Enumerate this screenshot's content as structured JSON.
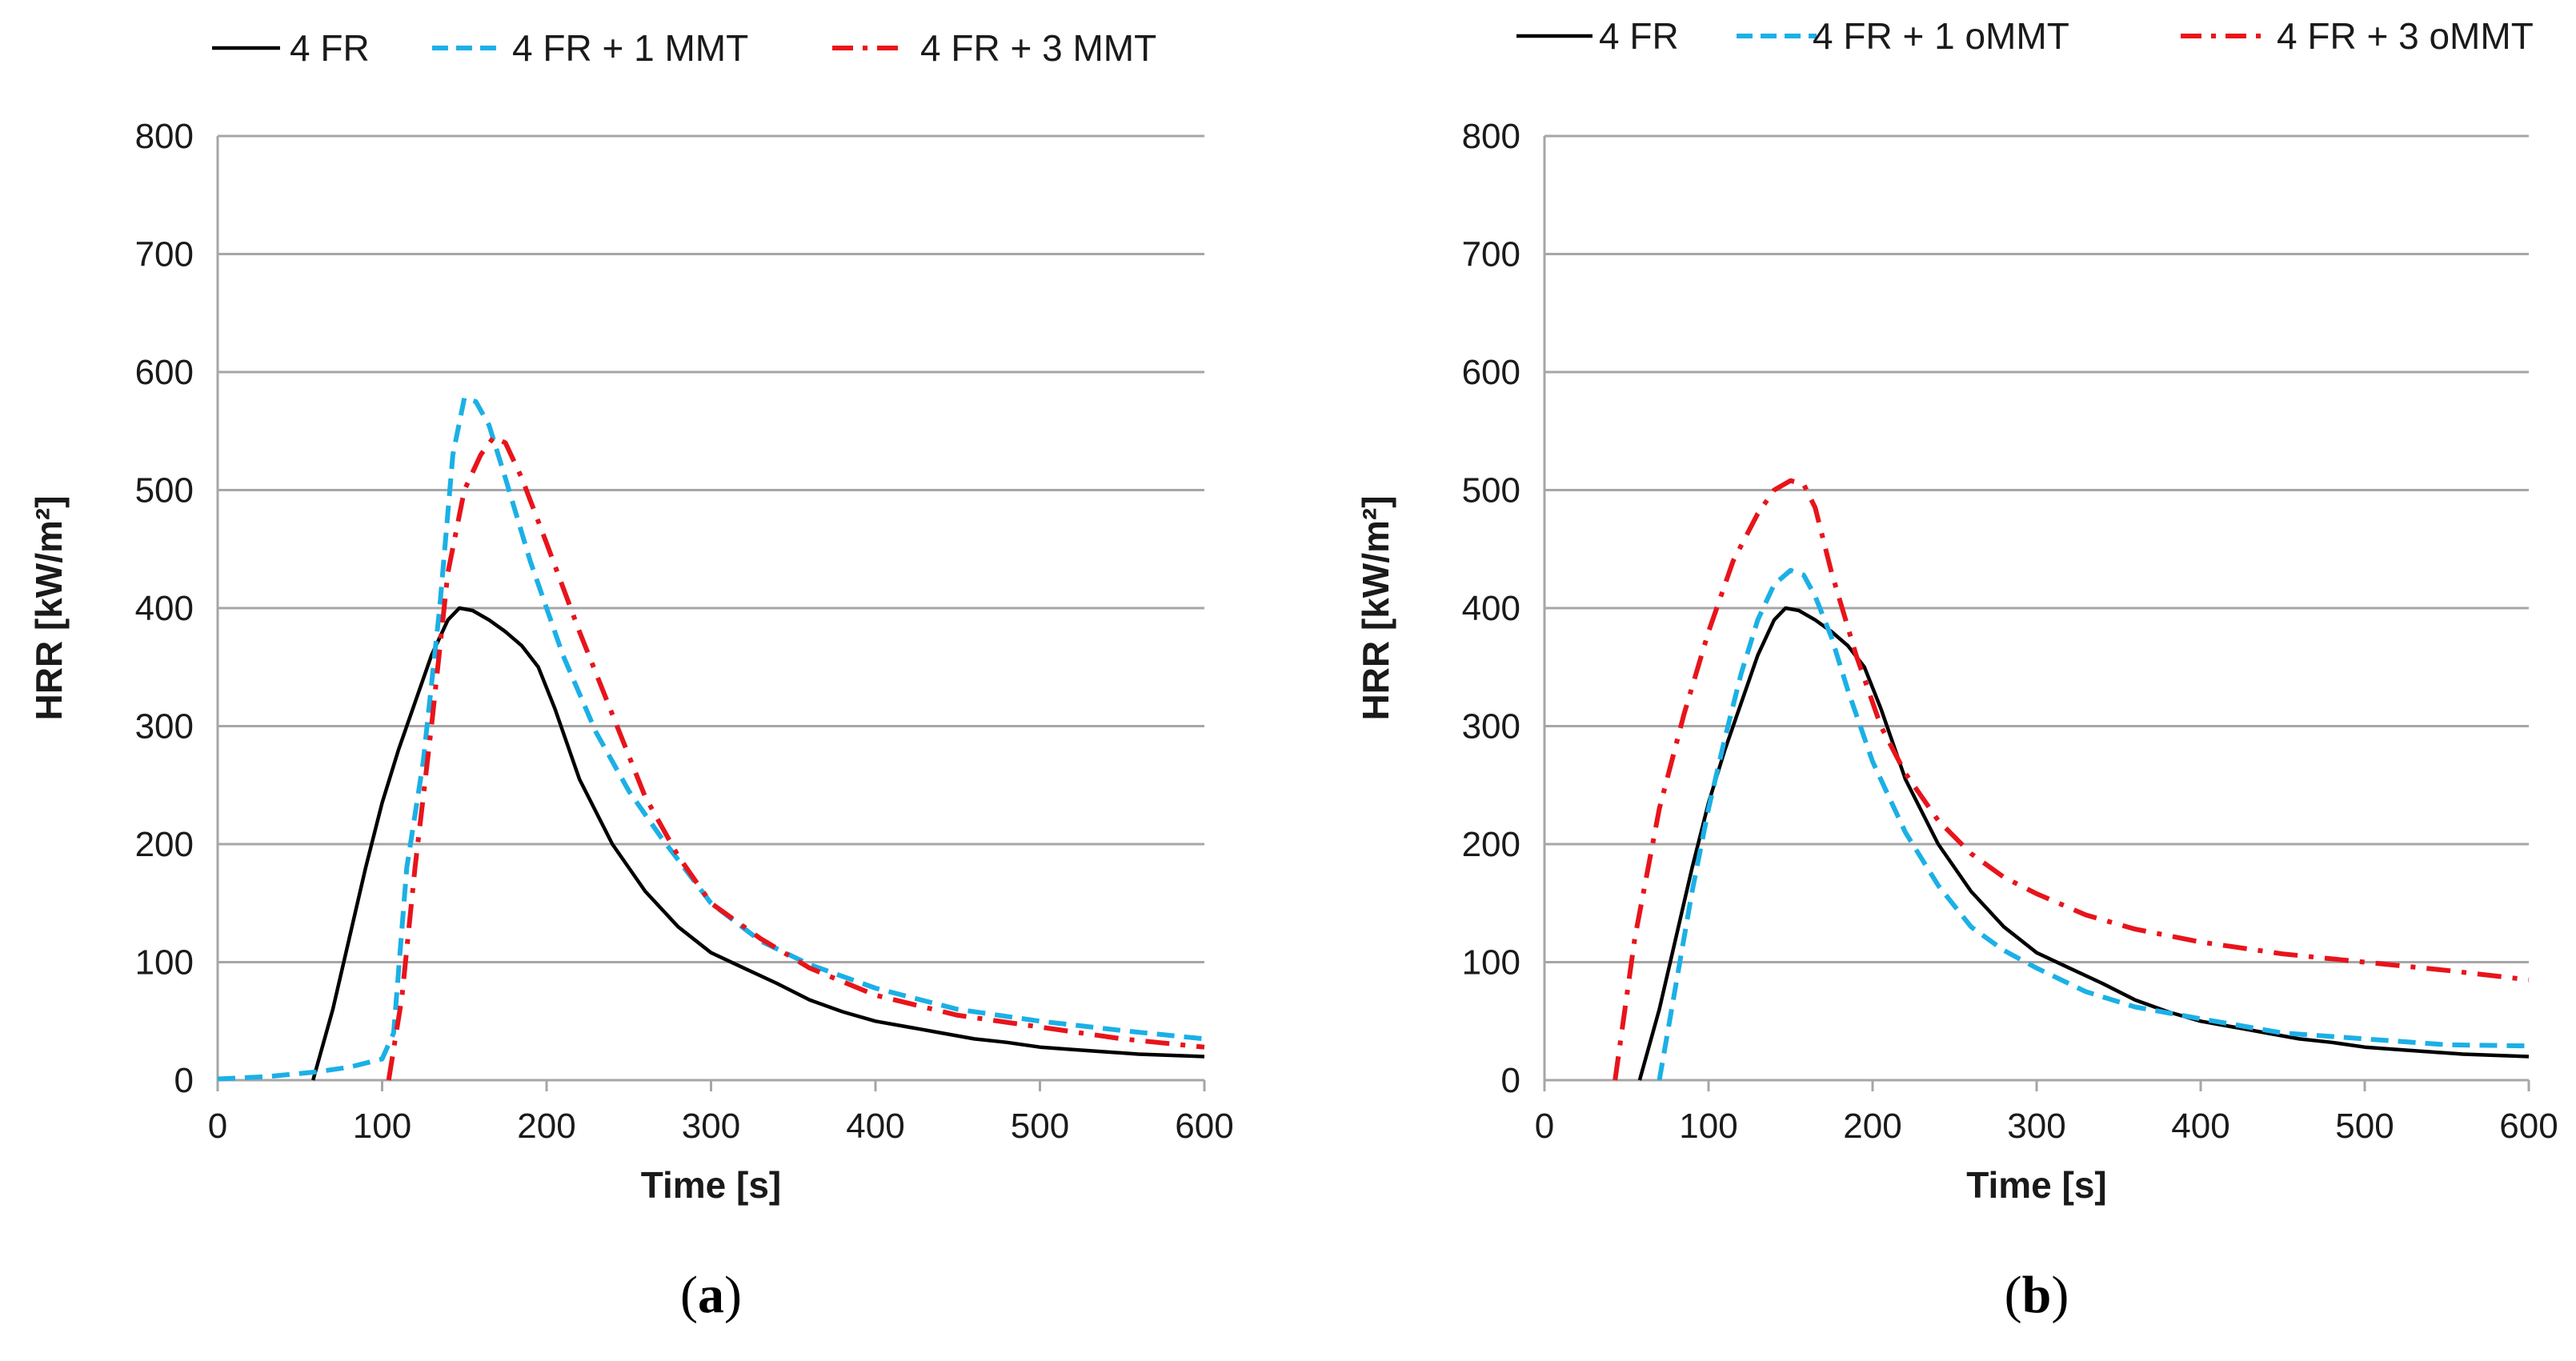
{
  "colors": {
    "4FR": "#000000",
    "plus1": "#1BB0E6",
    "plus3": "#E8141B",
    "grid": "#a6a6a6"
  },
  "chart_data": [
    {
      "type": "line",
      "panel_label": "(a)",
      "panel_letter": "a",
      "xlabel": "Time [s]",
      "ylabel": "HRR [kW/m²]",
      "xlim": [
        0,
        600
      ],
      "ylim": [
        0,
        800
      ],
      "xticks": [
        0,
        100,
        200,
        300,
        400,
        500,
        600
      ],
      "yticks": [
        0,
        100,
        200,
        300,
        400,
        500,
        600,
        700,
        800
      ],
      "grid": "horizontal",
      "legend_position": "top",
      "series": [
        {
          "name": "4 FR",
          "style": "solid",
          "color_key": "4FR",
          "x": [
            58,
            70,
            80,
            90,
            100,
            110,
            120,
            130,
            140,
            147,
            155,
            165,
            175,
            185,
            195,
            205,
            220,
            240,
            260,
            280,
            300,
            320,
            340,
            360,
            380,
            400,
            420,
            440,
            460,
            480,
            500,
            520,
            540,
            560,
            580,
            600
          ],
          "y": [
            0,
            60,
            120,
            180,
            235,
            280,
            320,
            360,
            390,
            400,
            398,
            390,
            380,
            368,
            350,
            315,
            255,
            200,
            160,
            130,
            108,
            95,
            82,
            68,
            58,
            50,
            45,
            40,
            35,
            32,
            28,
            26,
            24,
            22,
            21,
            20
          ]
        },
        {
          "name": "4 FR + 1 MMT",
          "style": "dashed",
          "color_key": "plus1",
          "x": [
            0,
            30,
            60,
            80,
            100,
            107,
            115,
            125,
            135,
            143,
            150,
            157,
            165,
            175,
            190,
            210,
            230,
            250,
            270,
            300,
            330,
            360,
            400,
            450,
            500,
            550,
            600
          ],
          "y": [
            1,
            3,
            7,
            11,
            18,
            40,
            180,
            270,
            400,
            530,
            578,
            575,
            555,
            510,
            440,
            360,
            295,
            245,
            205,
            150,
            118,
            98,
            78,
            60,
            50,
            42,
            35
          ]
        },
        {
          "name": "4 FR + 3 MMT",
          "style": "dashdot",
          "color_key": "plus3",
          "x": [
            104,
            112,
            120,
            130,
            140,
            150,
            160,
            168,
            175,
            185,
            200,
            220,
            240,
            260,
            280,
            300,
            330,
            360,
            400,
            450,
            500,
            550,
            600
          ],
          "y": [
            0,
            70,
            180,
            300,
            430,
            500,
            530,
            545,
            540,
            510,
            455,
            380,
            310,
            240,
            190,
            150,
            120,
            95,
            72,
            55,
            45,
            35,
            28
          ]
        }
      ]
    },
    {
      "type": "line",
      "panel_label": "(b)",
      "panel_letter": "b",
      "xlabel": "Time [s]",
      "ylabel": "HRR [kW/m²]",
      "xlim": [
        0,
        600
      ],
      "ylim": [
        0,
        800
      ],
      "xticks": [
        0,
        100,
        200,
        300,
        400,
        500,
        600
      ],
      "yticks": [
        0,
        100,
        200,
        300,
        400,
        500,
        600,
        700,
        800
      ],
      "grid": "horizontal",
      "legend_position": "top",
      "series": [
        {
          "name": "4 FR",
          "style": "solid",
          "color_key": "4FR",
          "x": [
            58,
            70,
            80,
            90,
            100,
            110,
            120,
            130,
            140,
            147,
            155,
            165,
            175,
            185,
            195,
            205,
            220,
            240,
            260,
            280,
            300,
            320,
            340,
            360,
            380,
            400,
            420,
            440,
            460,
            480,
            500,
            520,
            540,
            560,
            580,
            600
          ],
          "y": [
            0,
            60,
            120,
            180,
            235,
            280,
            320,
            360,
            390,
            400,
            398,
            390,
            380,
            368,
            350,
            315,
            255,
            200,
            160,
            130,
            108,
            95,
            82,
            68,
            58,
            50,
            45,
            40,
            35,
            32,
            28,
            26,
            24,
            22,
            21,
            20
          ]
        },
        {
          "name": "4 FR + 1 oMMT",
          "style": "dashed",
          "color_key": "plus1",
          "x": [
            70,
            80,
            90,
            100,
            110,
            120,
            130,
            140,
            150,
            158,
            165,
            175,
            185,
            200,
            220,
            240,
            260,
            280,
            300,
            330,
            360,
            400,
            450,
            500,
            550,
            600
          ],
          "y": [
            0,
            80,
            160,
            230,
            290,
            345,
            390,
            420,
            432,
            428,
            410,
            375,
            330,
            270,
            210,
            165,
            130,
            110,
            95,
            75,
            62,
            52,
            40,
            35,
            30,
            29
          ]
        },
        {
          "name": "4 FR + 3 oMMT",
          "style": "dashdot",
          "color_key": "plus3",
          "x": [
            43,
            55,
            70,
            85,
            100,
            115,
            130,
            140,
            150,
            158,
            165,
            175,
            190,
            205,
            220,
            240,
            260,
            280,
            300,
            330,
            360,
            400,
            450,
            500,
            550,
            600
          ],
          "y": [
            0,
            120,
            230,
            310,
            380,
            440,
            480,
            500,
            508,
            505,
            485,
            430,
            360,
            300,
            260,
            220,
            192,
            172,
            158,
            140,
            128,
            117,
            107,
            100,
            93,
            85
          ]
        }
      ]
    }
  ]
}
